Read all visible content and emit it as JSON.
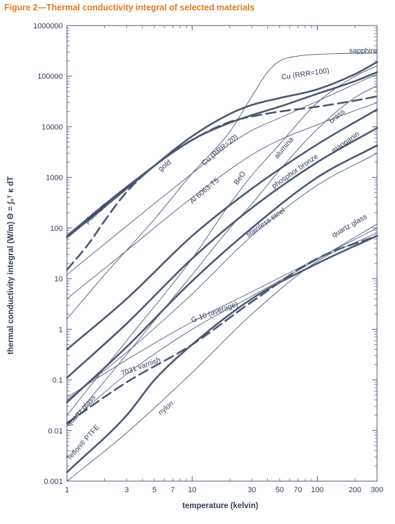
{
  "figure_title": "Figure 2—Thermal conductivity integral of selected materials",
  "chart_data": {
    "type": "line",
    "xscale": "log",
    "yscale": "log",
    "xlabel": "temperature (kelvin)",
    "ylabel": "thermal conductivity integral (W/m)  Θ = ∫₀ᵀ κ dT",
    "xlim": [
      1,
      300
    ],
    "ylim": [
      0.001,
      1000000
    ],
    "x_ticks": [
      1,
      3,
      5,
      7,
      10,
      30,
      50,
      70,
      100,
      200,
      300
    ],
    "x_tick_labels": [
      "1",
      "3",
      "5",
      "7",
      "10",
      "30",
      "50",
      "70",
      "100",
      "200",
      "300"
    ],
    "y_ticks": [
      0.001,
      0.01,
      0.1,
      1,
      10,
      100,
      1000,
      10000,
      100000,
      1000000
    ],
    "y_tick_labels": [
      "0.001",
      "0.01",
      "0.1",
      "1",
      "10",
      "100",
      "1000",
      "10000",
      "100000",
      "1000000"
    ],
    "grid": false,
    "line_color": "#4a5874",
    "series": [
      {
        "name": "sapphire",
        "style": "thin",
        "x": [
          1,
          2,
          5,
          10,
          20,
          30,
          40,
          50,
          70,
          100,
          150,
          200,
          300
        ],
        "y": [
          1.6,
          12,
          150,
          1200,
          8000,
          40000,
          120000,
          200000,
          250000,
          270000,
          280000,
          283000,
          285000
        ]
      },
      {
        "name": "Cu (RRR=100)",
        "style": "thick",
        "x": [
          1,
          3,
          10,
          20,
          30,
          50,
          100,
          200,
          300
        ],
        "y": [
          65,
          600,
          6500,
          18000,
          27000,
          37000,
          55000,
          110000,
          190000
        ]
      },
      {
        "name": "gold",
        "style": "thick",
        "x": [
          1,
          3,
          10,
          20,
          30,
          50,
          100,
          200,
          300
        ],
        "y": [
          70,
          650,
          5500,
          12000,
          17000,
          25000,
          45000,
          80000,
          120000
        ]
      },
      {
        "name": "platinum",
        "style": "dashed-thick",
        "x": [
          1,
          1.5,
          2,
          3,
          5,
          10,
          20,
          30,
          50,
          100,
          200,
          300
        ],
        "y": [
          15,
          50,
          140,
          520,
          1700,
          5500,
          12500,
          16000,
          20000,
          25000,
          33000,
          40000
        ]
      },
      {
        "name": "Cu (RRR=20)",
        "style": "thin",
        "x": [
          1,
          3,
          10,
          20,
          30,
          50,
          100,
          200,
          300
        ],
        "y": [
          12,
          110,
          1200,
          4500,
          8500,
          15000,
          32000,
          70000,
          110000
        ]
      },
      {
        "name": "Al 6063-T5",
        "style": "thin",
        "x": [
          1,
          3,
          10,
          30,
          50,
          100,
          200,
          300
        ],
        "y": [
          4,
          36,
          400,
          2800,
          5500,
          11000,
          21000,
          30000
        ]
      },
      {
        "name": "BeO",
        "style": "thin",
        "x": [
          1,
          3,
          10,
          20,
          30,
          50,
          100,
          200,
          300
        ],
        "y": [
          0.012,
          0.32,
          12,
          100,
          300,
          1400,
          9000,
          38000,
          65000
        ]
      },
      {
        "name": "alumina",
        "style": "thin",
        "x": [
          1,
          3,
          10,
          20,
          30,
          50,
          100,
          200,
          300
        ],
        "y": [
          0.02,
          0.6,
          25,
          300,
          1100,
          4500,
          30000,
          100000,
          160000
        ]
      },
      {
        "name": "brass",
        "style": "thick",
        "x": [
          1,
          3,
          10,
          30,
          100,
          300
        ],
        "y": [
          0.4,
          4,
          70,
          600,
          4500,
          22000
        ]
      },
      {
        "name": "phosphor bronze",
        "style": "thick",
        "x": [
          1,
          3,
          10,
          30,
          100,
          300
        ],
        "y": [
          0.11,
          1.3,
          25,
          250,
          2000,
          9500
        ]
      },
      {
        "name": "manganin",
        "style": "thick",
        "x": [
          1,
          3,
          10,
          30,
          100,
          300
        ],
        "y": [
          0.036,
          0.45,
          9,
          100,
          1000,
          4300
        ]
      },
      {
        "name": "stainless steel",
        "style": "thin",
        "x": [
          1,
          3,
          10,
          30,
          100,
          300
        ],
        "y": [
          0.04,
          0.35,
          5,
          70,
          700,
          3000
        ]
      },
      {
        "name": "G-10 (average)",
        "style": "thin",
        "x": [
          1,
          3,
          10,
          30,
          100,
          300
        ],
        "y": [
          0.045,
          0.25,
          1.4,
          5.5,
          25,
          100
        ]
      },
      {
        "name": "quartz glass",
        "style": "thin",
        "x": [
          1,
          3,
          10,
          30,
          100,
          300
        ],
        "y": [
          0.013,
          0.13,
          1,
          4.5,
          24,
          120
        ]
      },
      {
        "name": "7031 varnish",
        "style": "dashed-thick",
        "x": [
          1,
          3,
          10,
          30,
          100,
          300
        ],
        "y": [
          0.014,
          0.09,
          0.5,
          3.5,
          25,
          70
        ]
      },
      {
        "name": "Teflon® PTFE",
        "style": "thick",
        "x": [
          1,
          3,
          5,
          10,
          30,
          100,
          300
        ],
        "y": [
          0.0015,
          0.02,
          0.1,
          0.5,
          4,
          20,
          70
        ]
      },
      {
        "name": "nylon",
        "style": "thin",
        "x": [
          1,
          3,
          10,
          30,
          100,
          300
        ],
        "y": [
          0.001,
          0.009,
          0.14,
          2,
          22,
          80
        ]
      }
    ],
    "labels": [
      {
        "text": "sapphire",
        "x": 180,
        "y": 290000,
        "angle": 0
      },
      {
        "text": "Cu (RRR=100)",
        "x": 52,
        "y": 86000,
        "angle": -8
      },
      {
        "text": "gold",
        "x": 5.6,
        "y": 1300,
        "angle": -38
      },
      {
        "text": "platinum",
        "x": 1.45,
        "y": 120,
        "angle": -42
      },
      {
        "text": "Cu (RRR=20)",
        "x": 12.5,
        "y": 1700,
        "angle": -40
      },
      {
        "text": "Al 6063-T5",
        "x": 10,
        "y": 300,
        "angle": -40
      },
      {
        "text": "BeO",
        "x": 23,
        "y": 700,
        "angle": -55
      },
      {
        "text": "alumina",
        "x": 48,
        "y": 2300,
        "angle": -50
      },
      {
        "text": "brass",
        "x": 130,
        "y": 11500,
        "angle": -40
      },
      {
        "text": "phosphor bronze",
        "x": 45,
        "y": 600,
        "angle": -35
      },
      {
        "text": "manganin",
        "x": 135,
        "y": 3000,
        "angle": -35
      },
      {
        "text": "stainless steel",
        "x": 28,
        "y": 65,
        "angle": -35
      },
      {
        "text": "G-10 (average)",
        "x": 10,
        "y": 1.35,
        "angle": -20
      },
      {
        "text": "quartz glass",
        "x": 135,
        "y": 65,
        "angle": -30
      },
      {
        "text": "7031 varnish",
        "x": 2.75,
        "y": 0.12,
        "angle": -20
      },
      {
        "text": "quartz glass",
        "x": 1.05,
        "y": 0.012,
        "angle": -48
      },
      {
        "text": "nylon",
        "x": 5.6,
        "y": 0.02,
        "angle": -40
      },
      {
        "text": "Teflon® PTFE",
        "x": 1.05,
        "y": 0.0025,
        "angle": -48
      }
    ]
  }
}
